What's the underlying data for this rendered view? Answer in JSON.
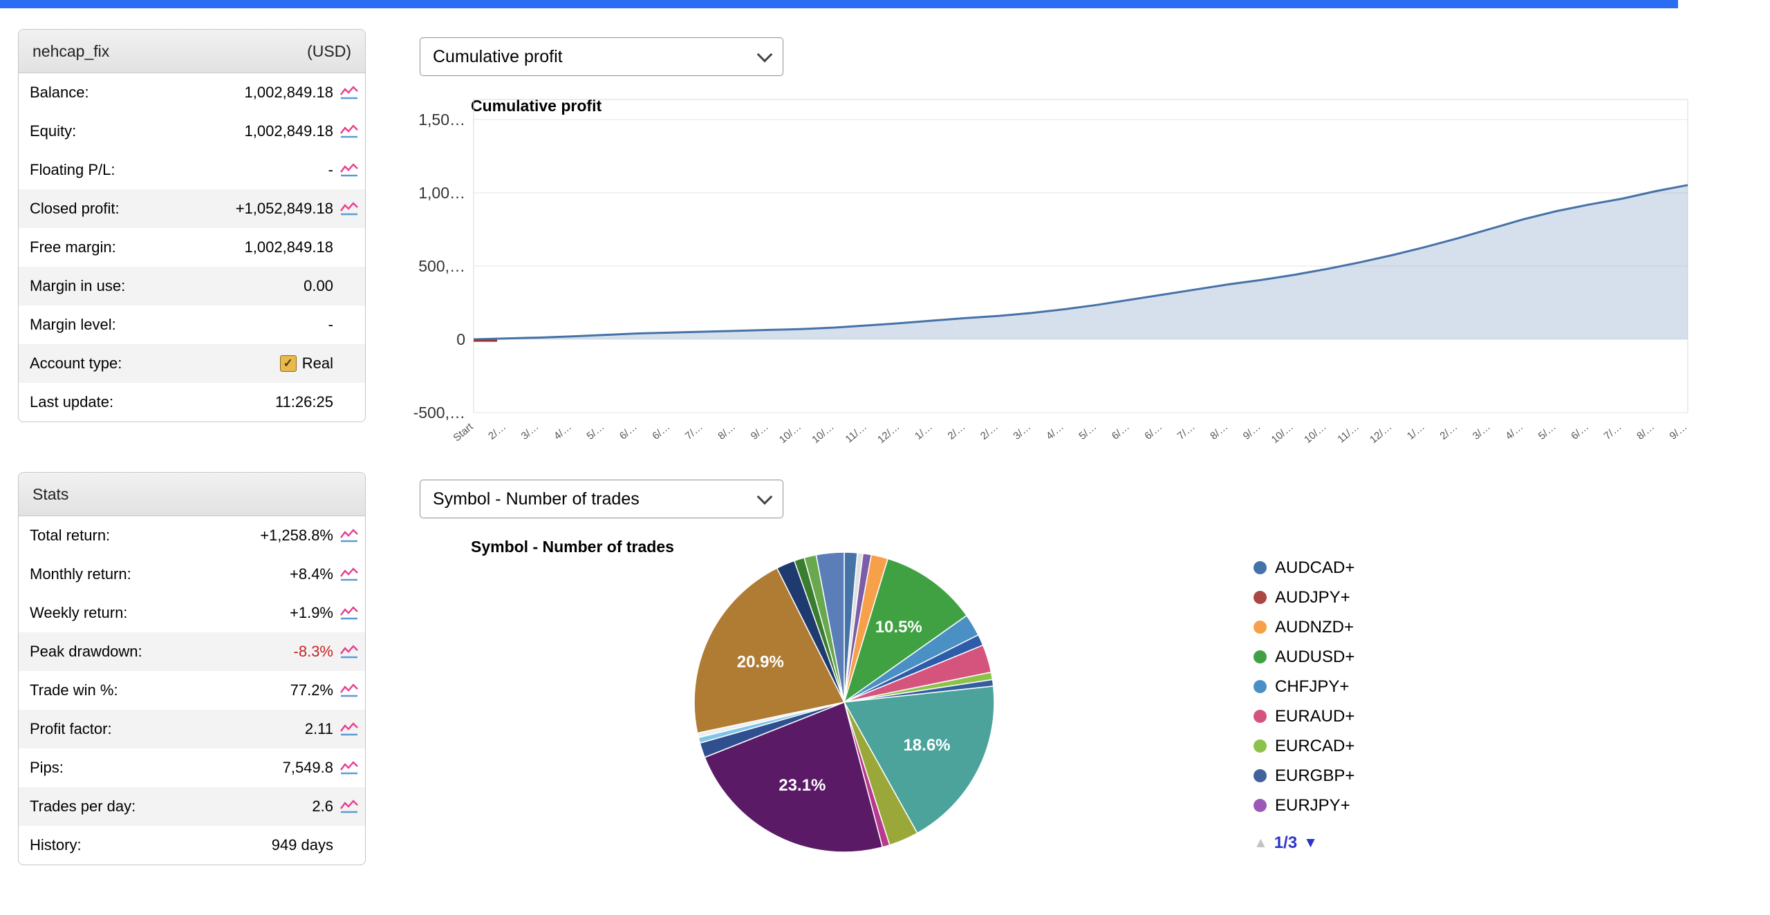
{
  "topbar": {
    "color": "#2b6df2"
  },
  "account": {
    "title": "nehcap_fix",
    "currency": "(USD)",
    "rows": [
      {
        "label": "Balance:",
        "value": "1,002,849.18",
        "icon": true,
        "shaded": false
      },
      {
        "label": "Equity:",
        "value": "1,002,849.18",
        "icon": true,
        "shaded": false
      },
      {
        "label": "Floating P/L:",
        "value": "-",
        "icon": true,
        "shaded": false
      },
      {
        "label": "Closed profit:",
        "value": "+1,052,849.18",
        "icon": true,
        "shaded": true
      },
      {
        "label": "Free margin:",
        "value": "1,002,849.18",
        "icon": false,
        "shaded": false
      },
      {
        "label": "Margin in use:",
        "value": "0.00",
        "icon": false,
        "shaded": true
      },
      {
        "label": "Margin level:",
        "value": "-",
        "icon": false,
        "shaded": false
      },
      {
        "label": "Account type:",
        "value": "Real",
        "icon": false,
        "shaded": true,
        "checkbox": true
      },
      {
        "label": "Last update:",
        "value": "11:26:25",
        "icon": false,
        "shaded": false
      }
    ]
  },
  "stats": {
    "title": "Stats",
    "rows": [
      {
        "label": "Total return:",
        "value": "+1,258.8%",
        "icon": true,
        "shaded": false
      },
      {
        "label": "Monthly return:",
        "value": "+8.4%",
        "icon": true,
        "shaded": false
      },
      {
        "label": "Weekly return:",
        "value": "+1.9%",
        "icon": true,
        "shaded": false
      },
      {
        "label": "Peak drawdown:",
        "value": "-8.3%",
        "icon": true,
        "shaded": true,
        "color": "red"
      },
      {
        "label": "Trade win %:",
        "value": "77.2%",
        "icon": true,
        "shaded": false
      },
      {
        "label": "Profit factor:",
        "value": "2.11",
        "icon": true,
        "shaded": true
      },
      {
        "label": "Pips:",
        "value": "7,549.8",
        "icon": true,
        "shaded": false
      },
      {
        "label": "Trades per day:",
        "value": "2.6",
        "icon": true,
        "shaded": true
      },
      {
        "label": "History:",
        "value": "949 days",
        "icon": false,
        "shaded": false
      }
    ]
  },
  "chart_data": [
    {
      "type": "area",
      "dropdown": "Cumulative profit",
      "title": "Cumulative profit",
      "line_color": "#4572a7",
      "fill_color": "rgba(69,114,167,0.22)",
      "start_marker_color": "#993333",
      "ylim": [
        -500000,
        1500000
      ],
      "y_ticks": [
        {
          "label": "1,50…",
          "value": 1500000
        },
        {
          "label": "1,00…",
          "value": 1000000
        },
        {
          "label": "500,…",
          "value": 500000
        },
        {
          "label": "0",
          "value": 0
        },
        {
          "label": "-500,…",
          "value": -500000
        }
      ],
      "x_labels": [
        "Start",
        "2/…",
        "3/…",
        "4/…",
        "5/…",
        "6/…",
        "6/…",
        "7/…",
        "8/…",
        "9/…",
        "10/…",
        "10/…",
        "11/…",
        "12/…",
        "1/…",
        "2/…",
        "2/…",
        "3/…",
        "4/…",
        "5/…",
        "6/…",
        "6/…",
        "7/…",
        "8/…",
        "9/…",
        "10/…",
        "10/…",
        "11/…",
        "12/…",
        "1/…",
        "2/…",
        "3/…",
        "4/…",
        "5/…",
        "6/…",
        "7/…",
        "8/…",
        "9/…"
      ],
      "values": [
        0,
        6000,
        12000,
        20000,
        30000,
        40000,
        46000,
        52000,
        58000,
        64000,
        70000,
        80000,
        95000,
        110000,
        128000,
        145000,
        160000,
        180000,
        205000,
        235000,
        270000,
        305000,
        340000,
        375000,
        405000,
        440000,
        480000,
        525000,
        575000,
        630000,
        690000,
        755000,
        820000,
        875000,
        920000,
        960000,
        1010000,
        1052849
      ]
    },
    {
      "type": "pie",
      "dropdown": "Symbol - Number of trades",
      "title": "Symbol - Number of trades",
      "slices": [
        {
          "value": 1.4,
          "color": "#4572a7"
        },
        {
          "value": 0.6,
          "color": "#e0e0e0"
        },
        {
          "value": 0.9,
          "color": "#7b5ea7"
        },
        {
          "value": 1.8,
          "color": "#f6a04a"
        },
        {
          "value": 10.5,
          "color": "#3fa142",
          "label": "10.5%"
        },
        {
          "value": 2.4,
          "color": "#4a90c4"
        },
        {
          "value": 1.2,
          "color": "#2e5ca8"
        },
        {
          "value": 3.0,
          "color": "#d4547e"
        },
        {
          "value": 0.8,
          "color": "#8bc34a"
        },
        {
          "value": 0.7,
          "color": "#355e9e"
        },
        {
          "value": 18.6,
          "color": "#4ba39b",
          "label": "18.6%"
        },
        {
          "value": 3.2,
          "color": "#9aa83a"
        },
        {
          "value": 0.8,
          "color": "#b83a8e"
        },
        {
          "value": 23.1,
          "color": "#5a1a66",
          "label": "23.1%"
        },
        {
          "value": 1.6,
          "color": "#2f4f8f"
        },
        {
          "value": 0.6,
          "color": "#7ec5e8"
        },
        {
          "value": 0.5,
          "color": "#efefef"
        },
        {
          "value": 20.9,
          "color": "#b07c33",
          "label": "20.9%"
        },
        {
          "value": 2.0,
          "color": "#1f3a6e"
        },
        {
          "value": 1.1,
          "color": "#3a7d2f"
        },
        {
          "value": 1.3,
          "color": "#6aa84f"
        },
        {
          "value": 3.0,
          "color": "#5b7db8"
        }
      ],
      "legend": [
        {
          "label": "AUDCAD+",
          "color": "#4572a7"
        },
        {
          "label": "AUDJPY+",
          "color": "#aa4643"
        },
        {
          "label": "AUDNZD+",
          "color": "#f6a04a"
        },
        {
          "label": "AUDUSD+",
          "color": "#3fa142"
        },
        {
          "label": "CHFJPY+",
          "color": "#4a90c4"
        },
        {
          "label": "EURAUD+",
          "color": "#d4547e"
        },
        {
          "label": "EURCAD+",
          "color": "#8bc34a"
        },
        {
          "label": "EURGBP+",
          "color": "#41639c"
        },
        {
          "label": "EURJPY+",
          "color": "#9b59b6"
        }
      ],
      "pagination": "1/3",
      "pager_up_icon": "▲",
      "pager_down_icon": "▼"
    }
  ]
}
